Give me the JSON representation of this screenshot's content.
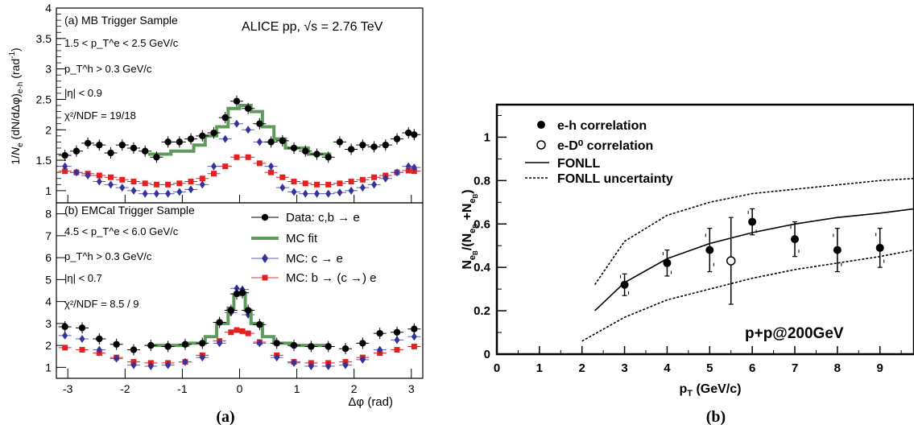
{
  "captions": {
    "left": "(a)",
    "right": "(b)"
  },
  "chart_data": [
    {
      "type": "scatter",
      "panel": "top",
      "xlim": [
        -3.2,
        3.2
      ],
      "ylim": [
        0.8,
        4.0
      ],
      "xlabel": "Δφ (rad)",
      "ylabel": "1/N_e (dN/dΔφ)_e-h (rad^-1)",
      "ytick_labels": [
        "1",
        "1.5",
        "2",
        "2.5",
        "3",
        "3.5",
        "4"
      ],
      "xtick_labels": [
        "-3",
        "-2",
        "-1",
        "0",
        "1",
        "2",
        "3"
      ],
      "sample": "(a) MB Trigger Sample",
      "kin": [
        "1.5 < p_T^e < 2.5 GeV/c",
        "p_T^h > 0.3 GeV/c",
        "|η| < 0.9",
        "χ²/NDF = 19/18"
      ],
      "collab": "ALICE pp, √s = 2.76 TeV",
      "x": [
        -3.05,
        -2.85,
        -2.65,
        -2.45,
        -2.25,
        -2.05,
        -1.85,
        -1.65,
        -1.45,
        -1.25,
        -1.05,
        -0.85,
        -0.65,
        -0.45,
        -0.25,
        -0.05,
        0.15,
        0.35,
        0.55,
        0.75,
        0.95,
        1.15,
        1.35,
        1.55,
        1.75,
        1.95,
        2.15,
        2.35,
        2.55,
        2.75,
        2.95,
        3.05
      ],
      "series": [
        {
          "values": [
            1.58,
            1.65,
            1.78,
            1.75,
            1.62,
            1.75,
            1.7,
            1.65,
            1.55,
            1.8,
            1.8,
            1.85,
            1.9,
            1.95,
            2.2,
            2.47,
            2.35,
            2.1,
            1.8,
            1.82,
            1.7,
            1.65,
            1.6,
            1.55,
            1.8,
            1.68,
            1.75,
            1.72,
            1.75,
            1.85,
            1.95,
            1.92
          ]
        },
        {
          "mc_fit_x": [
            -1.6,
            -1.2,
            -1.2,
            -0.8,
            -0.8,
            -0.6,
            -0.6,
            -0.4,
            -0.4,
            -0.2,
            -0.2,
            0.0,
            0.0,
            0.2,
            0.2,
            0.4,
            0.4,
            0.6,
            0.6,
            0.8,
            0.8,
            1.2,
            1.2,
            1.6
          ],
          "mc_fit_y": [
            1.6,
            1.6,
            1.65,
            1.65,
            1.75,
            1.75,
            1.9,
            1.9,
            2.05,
            2.05,
            2.35,
            2.35,
            2.4,
            2.4,
            2.3,
            2.3,
            2.05,
            2.05,
            1.85,
            1.85,
            1.7,
            1.7,
            1.6,
            1.6
          ]
        },
        {
          "values": [
            1.4,
            1.3,
            1.25,
            1.15,
            1.1,
            1.05,
            1.0,
            0.95,
            0.95,
            0.95,
            0.98,
            1.02,
            1.1,
            1.4,
            1.85,
            2.1,
            2.0,
            1.8,
            1.4,
            1.05,
            0.98,
            0.95,
            0.95,
            0.95,
            0.97,
            1.0,
            1.05,
            1.1,
            1.2,
            1.3,
            1.4,
            1.38
          ]
        },
        {
          "values": [
            1.32,
            1.3,
            1.28,
            1.25,
            1.22,
            1.18,
            1.15,
            1.12,
            1.1,
            1.1,
            1.12,
            1.15,
            1.2,
            1.28,
            1.4,
            1.55,
            1.55,
            1.45,
            1.3,
            1.22,
            1.15,
            1.12,
            1.1,
            1.1,
            1.12,
            1.15,
            1.18,
            1.22,
            1.25,
            1.3,
            1.33,
            1.32
          ]
        }
      ]
    },
    {
      "type": "scatter",
      "panel": "bottom",
      "xlim": [
        -3.2,
        3.2
      ],
      "ylim": [
        0.5,
        8.5
      ],
      "ytick_labels": [
        "1",
        "2",
        "3",
        "4",
        "5",
        "6",
        "7",
        "8"
      ],
      "sample": "(b) EMCal Trigger Sample",
      "kin": [
        "4.5 < p_T^e < 6.0 GeV/c",
        "p_T^h > 0.3 GeV/c",
        "|η| < 0.7",
        "χ²/NDF = 8.5 / 9"
      ],
      "legend": [
        "Data: c,b → e",
        "MC fit",
        "MC: c → e",
        "MC: b → (c →) e"
      ],
      "x": [
        -3.05,
        -2.75,
        -2.45,
        -2.15,
        -1.85,
        -1.55,
        -1.25,
        -0.95,
        -0.65,
        -0.35,
        -0.15,
        -0.05,
        0.05,
        0.15,
        0.35,
        0.65,
        0.95,
        1.25,
        1.55,
        1.85,
        2.15,
        2.45,
        2.75,
        3.05
      ],
      "series": [
        {
          "values": [
            2.85,
            2.8,
            2.3,
            2.05,
            1.8,
            2.0,
            1.95,
            2.05,
            2.1,
            3.05,
            3.6,
            4.35,
            4.4,
            3.6,
            2.95,
            2.1,
            2.0,
            1.95,
            1.95,
            1.85,
            2.1,
            2.55,
            2.6,
            2.75
          ]
        },
        {
          "mc_fit_x": [
            -1.6,
            -0.9,
            -0.9,
            -0.6,
            -0.6,
            -0.4,
            -0.4,
            -0.2,
            -0.2,
            -0.1,
            -0.1,
            0.0,
            0.0,
            0.1,
            0.1,
            0.2,
            0.2,
            0.4,
            0.4,
            0.6,
            0.6,
            0.9,
            0.9,
            1.6
          ],
          "mc_fit_y": [
            2.0,
            2.0,
            2.1,
            2.1,
            2.4,
            2.4,
            3.0,
            3.0,
            3.7,
            3.7,
            4.3,
            4.3,
            4.4,
            4.4,
            3.6,
            3.6,
            3.0,
            3.0,
            2.4,
            2.4,
            2.1,
            2.1,
            2.0,
            2.0
          ]
        },
        {
          "values": [
            2.45,
            2.3,
            1.8,
            1.4,
            1.1,
            1.05,
            1.1,
            1.25,
            1.45,
            2.1,
            3.5,
            4.6,
            4.55,
            3.4,
            2.1,
            1.45,
            1.2,
            1.05,
            1.05,
            1.1,
            1.35,
            1.8,
            2.25,
            2.4
          ]
        },
        {
          "values": [
            1.9,
            1.8,
            1.65,
            1.45,
            1.25,
            1.2,
            1.2,
            1.25,
            1.55,
            2.2,
            2.6,
            2.7,
            2.65,
            2.55,
            2.15,
            1.55,
            1.25,
            1.2,
            1.2,
            1.25,
            1.45,
            1.65,
            1.8,
            1.95
          ]
        }
      ]
    },
    {
      "type": "scatter",
      "panel": "right",
      "xlim": [
        0,
        9.8
      ],
      "ylim": [
        0,
        1.15
      ],
      "xlabel": "p_T (GeV/c)",
      "ylabel": "N_eB/(N_eD+N_eB)",
      "xtick_labels": [
        "0",
        "1",
        "2",
        "3",
        "4",
        "5",
        "6",
        "7",
        "8",
        "9"
      ],
      "ytick_labels": [
        "0",
        "0.2",
        "0.4",
        "0.6",
        "0.8",
        "1"
      ],
      "legend": [
        "e-h correlation",
        "e-D⁰ correlation",
        "FONLL",
        "FONLL uncertainty"
      ],
      "annotation": "p+p@200GeV",
      "eh_x": [
        3,
        4,
        5,
        6,
        7,
        8,
        9
      ],
      "eh_y": [
        0.32,
        0.42,
        0.48,
        0.61,
        0.53,
        0.48,
        0.49
      ],
      "eh_err": [
        0.05,
        0.06,
        0.1,
        0.06,
        0.08,
        0.1,
        0.09
      ],
      "eD_x": [
        5.5
      ],
      "eD_y": [
        0.43
      ],
      "eD_err": [
        0.2
      ],
      "fonll_x": [
        2.3,
        3,
        4,
        5,
        6,
        7,
        8,
        9,
        9.8
      ],
      "fonll_y": [
        0.2,
        0.33,
        0.44,
        0.51,
        0.56,
        0.6,
        0.63,
        0.65,
        0.67
      ],
      "fonll_up": [
        0.32,
        0.52,
        0.64,
        0.7,
        0.74,
        0.76,
        0.78,
        0.8,
        0.81
      ],
      "fonll_lo_x": [
        2.0,
        3,
        4,
        5,
        6,
        7,
        8,
        9,
        9.8
      ],
      "fonll_lo": [
        0.06,
        0.17,
        0.25,
        0.3,
        0.35,
        0.39,
        0.42,
        0.45,
        0.48
      ]
    }
  ]
}
